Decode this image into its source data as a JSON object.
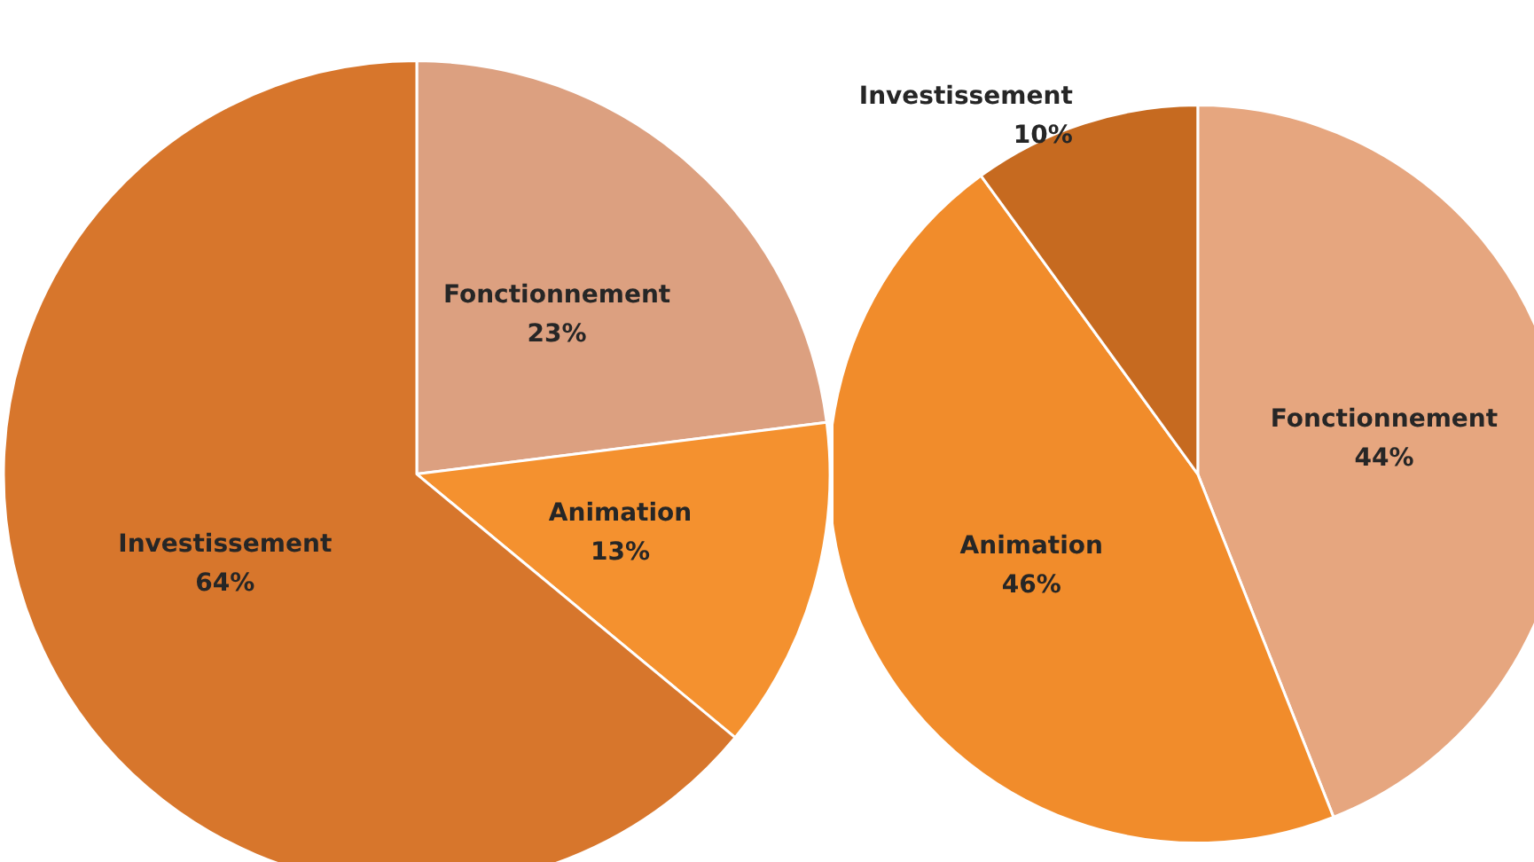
{
  "chart_data": [
    {
      "type": "pie",
      "categories": [
        "Fonctionnement",
        "Animation",
        "Investissement"
      ],
      "values": [
        23,
        13,
        64
      ],
      "value_labels": [
        "23%",
        "13%",
        "64%"
      ],
      "colors": [
        "#dca080",
        "#f4912f",
        "#d7762c"
      ]
    },
    {
      "type": "pie",
      "categories": [
        "Fonctionnement",
        "Animation",
        "Investissement"
      ],
      "values": [
        44,
        46,
        10
      ],
      "value_labels": [
        "44%",
        "46%",
        "10%"
      ],
      "colors": [
        "#e6a67f",
        "#f18c2b",
        "#c66a20"
      ]
    }
  ]
}
